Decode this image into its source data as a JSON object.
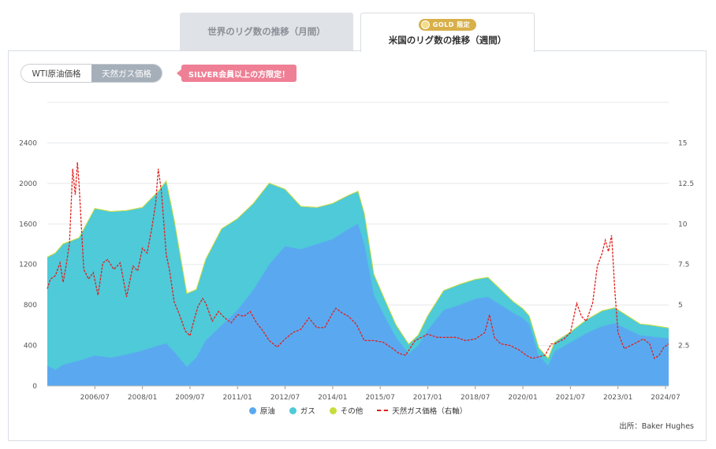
{
  "tabs": {
    "monthly_label": "世界のリグ数の推移（月間）",
    "weekly_label": "米国のリグ数の推移（週間）",
    "gold_badge": "GOLD 限定"
  },
  "toggle": {
    "wti_label": "WTI原油価格",
    "gas_label": "天然ガス価格"
  },
  "silver_notice": "SILVER会員以上の方限定！",
  "source": "出所：Baker Hughes",
  "colors": {
    "oil": "#5aa9f0",
    "gas": "#4ecad9",
    "other": "#c8dc3c",
    "price": "#e0201c"
  },
  "chart_data": {
    "type": "area",
    "x_ticks": [
      "2006/07",
      "2008/01",
      "2009/07",
      "2011/01",
      "2012/07",
      "2014/01",
      "2015/07",
      "2017/01",
      "2018/07",
      "2020/01",
      "2021/07",
      "2023/01",
      "2024/07"
    ],
    "y_left_ticks": [
      "0",
      "400",
      "800",
      "1200",
      "1600",
      "2000",
      "2400"
    ],
    "y_right_ticks": [
      "",
      "2.5",
      "5",
      "7.5",
      "10",
      "12.5",
      "15"
    ],
    "y_left_range": [
      0,
      2800
    ],
    "y_right_range": [
      0,
      17.5
    ],
    "x_range": [
      2005.0,
      2024.6
    ],
    "series": [
      {
        "name": "原油",
        "kind": "area",
        "x": [
          2005.0,
          2005.25,
          2005.5,
          2006.0,
          2006.5,
          2007.0,
          2007.5,
          2008.0,
          2008.5,
          2008.75,
          2009.0,
          2009.4,
          2009.7,
          2010.0,
          2010.5,
          2011.0,
          2011.5,
          2012.0,
          2012.5,
          2013.0,
          2013.5,
          2014.0,
          2014.5,
          2014.8,
          2015.0,
          2015.3,
          2015.7,
          2016.0,
          2016.4,
          2016.7,
          2017.0,
          2017.5,
          2018.0,
          2018.5,
          2018.9,
          2019.3,
          2019.7,
          2020.0,
          2020.2,
          2020.5,
          2020.8,
          2021.0,
          2021.5,
          2022.0,
          2022.5,
          2022.9,
          2023.3,
          2023.7,
          2024.0,
          2024.6
        ],
        "values": [
          200,
          160,
          210,
          250,
          300,
          280,
          310,
          350,
          400,
          420,
          340,
          190,
          280,
          450,
          600,
          750,
          950,
          1200,
          1380,
          1350,
          1400,
          1450,
          1550,
          1600,
          1400,
          900,
          650,
          480,
          320,
          400,
          550,
          750,
          800,
          860,
          880,
          800,
          720,
          670,
          610,
          300,
          200,
          340,
          430,
          520,
          590,
          620,
          560,
          500,
          490,
          470
        ]
      },
      {
        "name": "ガス",
        "kind": "area",
        "x": [
          2005.0,
          2005.25,
          2005.5,
          2006.0,
          2006.5,
          2007.0,
          2007.5,
          2008.0,
          2008.5,
          2008.75,
          2009.0,
          2009.4,
          2009.7,
          2010.0,
          2010.5,
          2011.0,
          2011.5,
          2012.0,
          2012.5,
          2013.0,
          2013.5,
          2014.0,
          2014.5,
          2014.8,
          2015.0,
          2015.3,
          2015.7,
          2016.0,
          2016.4,
          2016.7,
          2017.0,
          2017.5,
          2018.0,
          2018.5,
          2018.9,
          2019.3,
          2019.7,
          2020.0,
          2020.2,
          2020.5,
          2020.8,
          2021.0,
          2021.5,
          2022.0,
          2022.5,
          2022.9,
          2023.3,
          2023.7,
          2024.0,
          2024.6
        ],
        "values": [
          1070,
          1150,
          1190,
          1210,
          1450,
          1440,
          1420,
          1410,
          1520,
          1600,
          1300,
          720,
          670,
          800,
          950,
          900,
          850,
          800,
          560,
          420,
          360,
          350,
          330,
          320,
          300,
          200,
          160,
          120,
          90,
          100,
          140,
          190,
          200,
          190,
          190,
          150,
          110,
          90,
          80,
          75,
          70,
          90,
          100,
          130,
          150,
          150,
          130,
          110,
          110,
          100
        ]
      },
      {
        "name": "その他",
        "kind": "area",
        "x": [
          2005.0,
          2024.6
        ],
        "values": [
          3,
          3
        ]
      },
      {
        "name": "天然ガス価格（右軸）",
        "kind": "line",
        "axis": "right",
        "x": [
          2005.0,
          2005.1,
          2005.25,
          2005.4,
          2005.5,
          2005.6,
          2005.7,
          2005.8,
          2005.88,
          2005.95,
          2006.0,
          2006.15,
          2006.3,
          2006.45,
          2006.6,
          2006.75,
          2006.9,
          2007.1,
          2007.3,
          2007.5,
          2007.7,
          2007.85,
          2008.0,
          2008.15,
          2008.3,
          2008.42,
          2008.5,
          2008.6,
          2008.75,
          2008.85,
          2009.0,
          2009.15,
          2009.35,
          2009.5,
          2009.62,
          2009.75,
          2009.9,
          2010.0,
          2010.2,
          2010.4,
          2010.6,
          2010.8,
          2011.0,
          2011.2,
          2011.4,
          2011.6,
          2011.8,
          2012.0,
          2012.25,
          2012.5,
          2012.75,
          2013.0,
          2013.25,
          2013.5,
          2013.75,
          2014.0,
          2014.1,
          2014.3,
          2014.5,
          2014.75,
          2015.0,
          2015.3,
          2015.6,
          2015.9,
          2016.1,
          2016.3,
          2016.6,
          2016.8,
          2017.0,
          2017.3,
          2017.6,
          2017.9,
          2018.2,
          2018.5,
          2018.8,
          2018.95,
          2019.1,
          2019.3,
          2019.6,
          2019.9,
          2020.1,
          2020.3,
          2020.5,
          2020.7,
          2020.9,
          2021.0,
          2021.3,
          2021.5,
          2021.7,
          2021.85,
          2022.0,
          2022.2,
          2022.35,
          2022.5,
          2022.6,
          2022.7,
          2022.8,
          2022.9,
          2023.0,
          2023.2,
          2023.4,
          2023.6,
          2023.8,
          2024.0,
          2024.15,
          2024.3,
          2024.45,
          2024.6
        ],
        "values": [
          6.0,
          6.6,
          6.8,
          7.6,
          6.4,
          7.5,
          8.8,
          13.4,
          11.8,
          13.8,
          12.5,
          7.2,
          6.6,
          7.0,
          5.6,
          7.6,
          7.8,
          7.2,
          7.6,
          5.5,
          7.4,
          7.1,
          8.5,
          8.2,
          9.8,
          11.3,
          13.4,
          12.0,
          8.1,
          7.2,
          5.2,
          4.5,
          3.4,
          3.1,
          4.0,
          4.9,
          5.4,
          5.1,
          4.0,
          4.6,
          4.2,
          3.9,
          4.4,
          4.3,
          4.6,
          3.9,
          3.4,
          2.8,
          2.4,
          2.9,
          3.3,
          3.5,
          4.2,
          3.6,
          3.6,
          4.5,
          4.8,
          4.5,
          4.3,
          3.8,
          2.8,
          2.8,
          2.7,
          2.3,
          2.0,
          1.9,
          2.8,
          3.0,
          3.2,
          3.0,
          3.0,
          3.0,
          2.8,
          2.9,
          3.3,
          4.4,
          3.0,
          2.6,
          2.5,
          2.2,
          1.9,
          1.7,
          1.8,
          1.9,
          2.6,
          2.6,
          2.9,
          3.3,
          5.1,
          4.3,
          4.0,
          5.1,
          7.4,
          8.2,
          9.0,
          8.3,
          9.3,
          5.9,
          3.3,
          2.3,
          2.5,
          2.7,
          2.9,
          2.6,
          1.7,
          1.9,
          2.4,
          2.6
        ]
      }
    ],
    "legend": [
      "原油",
      "ガス",
      "その他",
      "天然ガス価格（右軸）"
    ],
    "legend_position": "bottom",
    "grid": true
  }
}
